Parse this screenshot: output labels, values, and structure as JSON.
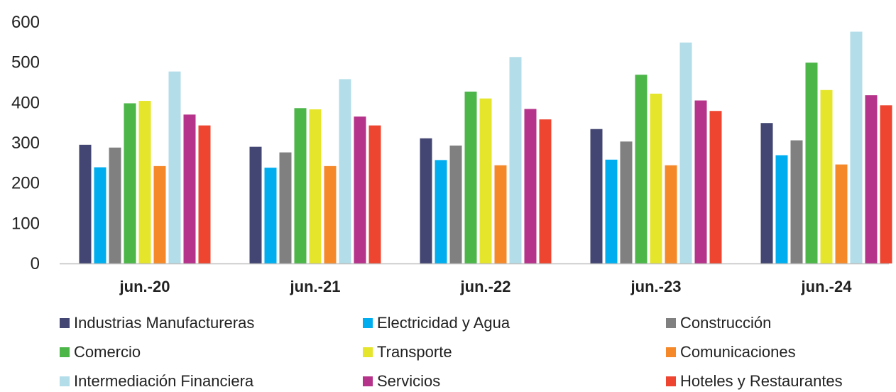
{
  "chart_data": {
    "type": "bar",
    "categories": [
      "jun.-20",
      "jun.-21",
      "jun.-22",
      "jun.-23",
      "jun.-24"
    ],
    "ylim": [
      0,
      600
    ],
    "yticks": [
      0,
      100,
      200,
      300,
      400,
      500,
      600
    ],
    "grid": false,
    "legend_position": "bottom",
    "series": [
      {
        "name": "Industrias Manufactureras",
        "color": "#434672",
        "values": [
          295,
          290,
          311,
          334,
          349
        ]
      },
      {
        "name": "Electricidad y Agua",
        "color": "#00AEEF",
        "values": [
          239,
          238,
          257,
          258,
          269
        ]
      },
      {
        "name": "Construcción",
        "color": "#808080",
        "values": [
          288,
          276,
          293,
          303,
          306
        ]
      },
      {
        "name": "Comercio",
        "color": "#4CB649",
        "values": [
          398,
          386,
          427,
          469,
          499
        ]
      },
      {
        "name": "Transporte",
        "color": "#E5E52B",
        "values": [
          404,
          383,
          410,
          422,
          431
        ]
      },
      {
        "name": "Comunicaciones",
        "color": "#F5892A",
        "values": [
          242,
          242,
          244,
          244,
          246
        ]
      },
      {
        "name": "Intermediación Financiera",
        "color": "#B3DDE8",
        "values": [
          477,
          458,
          513,
          549,
          576
        ]
      },
      {
        "name": "Servicios",
        "color": "#B5338A",
        "values": [
          370,
          365,
          384,
          405,
          418
        ]
      },
      {
        "name": "Hoteles y Restaurantes",
        "color": "#EE4530",
        "values": [
          343,
          343,
          358,
          379,
          393
        ]
      }
    ]
  }
}
